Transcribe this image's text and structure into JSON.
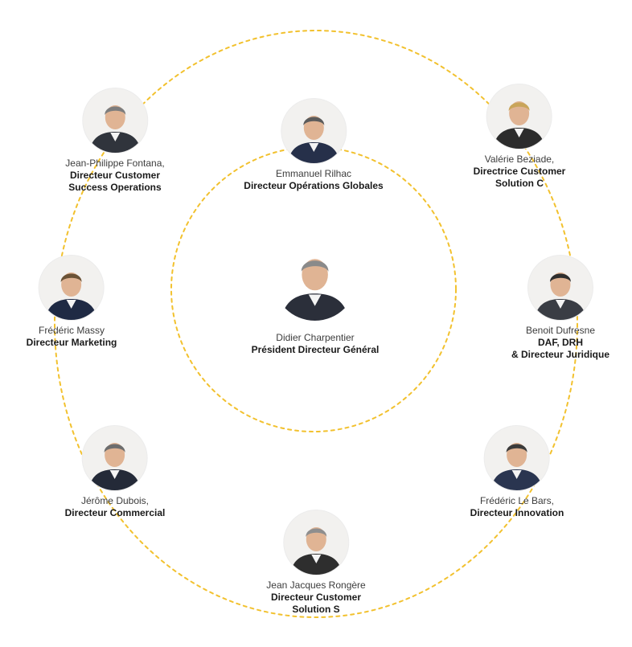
{
  "ring_color": "#f2c12e",
  "people": [
    {
      "id": "center",
      "name": "Didier Charpentier",
      "role_lines": [
        "Président Directeur Général"
      ],
      "icon": "person-avatar-icon"
    },
    {
      "id": "emmanuel",
      "name": "Emmanuel Rilhac",
      "role_lines": [
        "Directeur Opérations Globales"
      ],
      "icon": "person-avatar-icon"
    },
    {
      "id": "jean-philippe",
      "name": "Jean-Philippe Fontana,",
      "role_lines": [
        "Directeur Customer",
        "Success Operations"
      ],
      "icon": "person-avatar-icon"
    },
    {
      "id": "valerie",
      "name": "Valérie Beziade,",
      "role_lines": [
        "Directrice Customer",
        "Solution C"
      ],
      "icon": "person-avatar-icon"
    },
    {
      "id": "frederic-massy",
      "name": "Frédéric Massy",
      "role_lines": [
        "Directeur Marketing"
      ],
      "icon": "person-avatar-icon"
    },
    {
      "id": "benoit",
      "name": "Benoit Dufresne",
      "role_lines": [
        "DAF, DRH",
        "& Directeur Juridique"
      ],
      "icon": "person-avatar-icon"
    },
    {
      "id": "jerome",
      "name": "Jérôme Dubois,",
      "role_lines": [
        "Directeur Commercial"
      ],
      "icon": "person-avatar-icon"
    },
    {
      "id": "frederic-lebars",
      "name": "Frédéric Le Bars,",
      "role_lines": [
        "Directeur Innovation"
      ],
      "icon": "person-avatar-icon"
    },
    {
      "id": "jean-jacques",
      "name": "Jean Jacques Rongère",
      "role_lines": [
        "Directeur Customer",
        "Solution S"
      ],
      "icon": "person-avatar-icon"
    }
  ]
}
